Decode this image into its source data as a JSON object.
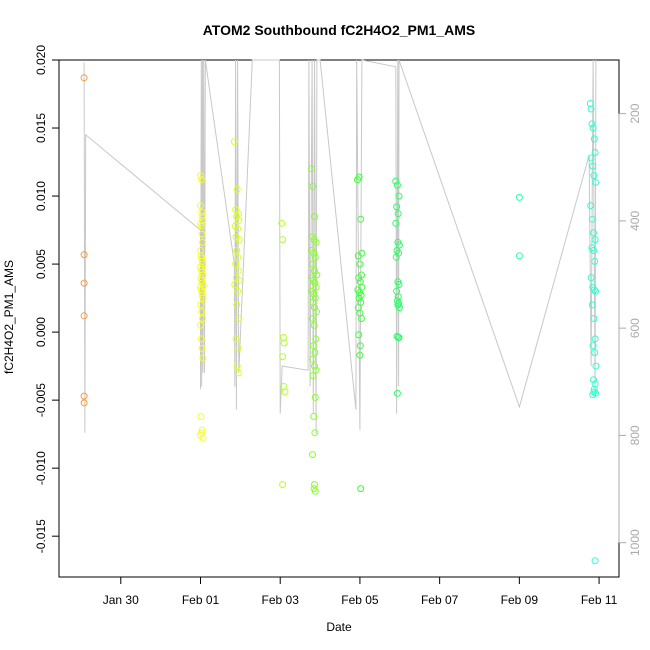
{
  "chart_data": {
    "type": "scatter",
    "title": "ATOM2 Southbound fC2H4O2_PM1_AMS",
    "xlabel": "Date",
    "ylabel": "fC2H4O2_PM1_AMS",
    "x_ticks": [
      "Jan 30",
      "Feb 01",
      "Feb 03",
      "Feb 05",
      "Feb 07",
      "Feb 09",
      "Feb 11"
    ],
    "x_tick_days": [
      30,
      32,
      34,
      36,
      38,
      40,
      42
    ],
    "xlim_days": [
      28.45,
      42.5
    ],
    "y_ticks": [
      "-0.015",
      "-0.010",
      "-0.005",
      "0.000",
      "0.005",
      "0.010",
      "0.015",
      "0.020"
    ],
    "y_tick_values": [
      -0.015,
      -0.01,
      -0.005,
      0.0,
      0.005,
      0.01,
      0.015,
      0.02
    ],
    "ylim": [
      -0.018,
      0.02
    ],
    "y2_ticks": [
      "200",
      "400",
      "600",
      "800",
      "1000"
    ],
    "y2_tick_values": [
      200,
      400,
      600,
      800,
      1000
    ],
    "y2lim": [
      1064,
      100
    ],
    "grid": false,
    "line_color": "#c8c8c8",
    "point_groups": [
      {
        "color": "#ff9a40",
        "x": [
          29.08,
          29.08,
          29.08,
          29.08,
          29.08,
          29.08
        ],
        "y": [
          0.0187,
          0.0057,
          0.0036,
          0.0012,
          -0.0047,
          -0.0052
        ]
      },
      {
        "color": "#f7ff24",
        "x": [
          32.0,
          32.02,
          32.0,
          32.03,
          32.04,
          32.05,
          32.0,
          32.02,
          32.04,
          32.05,
          32.0,
          32.02,
          32.03,
          32.05,
          32.06,
          32.0,
          32.02,
          32.04,
          32.06,
          32.01,
          32.03,
          32.05,
          32.07,
          32.0,
          32.02,
          32.04,
          32.05,
          32.06,
          32.01,
          32.03,
          32.05,
          32.0,
          32.02,
          32.04,
          32.06,
          32.01,
          32.04,
          32.06,
          32.0,
          32.03
        ],
        "y": [
          0.0115,
          0.0112,
          0.0093,
          0.0088,
          0.0085,
          0.0082,
          0.008,
          0.0078,
          0.0072,
          0.0066,
          0.006,
          0.0056,
          0.0054,
          0.0052,
          0.005,
          0.0048,
          0.0046,
          0.0044,
          0.0042,
          0.004,
          0.0038,
          0.0036,
          0.0034,
          0.0033,
          0.0031,
          0.0029,
          0.0027,
          0.0025,
          0.002,
          0.0015,
          0.001,
          0.0005,
          -0.0005,
          -0.0012,
          -0.0019,
          -0.0062,
          -0.0072,
          -0.0078,
          -0.0076,
          -0.0074
        ]
      },
      {
        "color": "#dcff20",
        "x": [
          32.85,
          32.92,
          32.88,
          32.95,
          32.9,
          32.96,
          32.87,
          32.93,
          32.89,
          32.97,
          32.91,
          32.94,
          32.88,
          32.95,
          32.9,
          32.97,
          32.86,
          32.93,
          32.91,
          32.96,
          32.89,
          32.94,
          32.92,
          32.95
        ],
        "y": [
          0.014,
          0.0105,
          0.009,
          0.0087,
          0.0085,
          0.0082,
          0.0078,
          0.0076,
          0.007,
          0.0068,
          0.006,
          0.0055,
          0.005,
          0.0045,
          0.004,
          0.0038,
          0.0035,
          0.003,
          0.002,
          0.001,
          -0.0005,
          -0.0012,
          -0.0025,
          -0.003
        ]
      },
      {
        "color": "#b4ff2a",
        "x": [
          34.04,
          34.06,
          34.08,
          34.1,
          34.06,
          34.09,
          34.12,
          34.06
        ],
        "y": [
          0.008,
          0.0068,
          -0.0004,
          -0.0008,
          -0.0018,
          -0.004,
          -0.0044,
          -0.0112
        ]
      },
      {
        "color": "#8aff2e",
        "x": [
          34.78,
          34.82,
          34.86,
          34.8,
          34.85,
          34.9,
          34.79,
          34.84,
          34.88,
          34.81,
          34.86,
          34.92,
          34.8,
          34.83,
          34.87,
          34.9,
          34.79,
          34.84,
          34.88,
          34.82,
          34.86,
          34.91,
          34.8,
          34.85,
          34.89,
          34.83,
          34.87,
          34.81,
          34.86,
          34.9,
          34.82,
          34.88,
          34.84,
          34.87,
          34.81,
          34.86,
          34.85,
          34.88
        ],
        "y": [
          0.012,
          0.0107,
          0.0085,
          0.007,
          0.0068,
          0.0066,
          0.006,
          0.0058,
          0.0055,
          0.005,
          0.0045,
          0.0042,
          0.004,
          0.0038,
          0.0036,
          0.0033,
          0.003,
          0.0028,
          0.0025,
          0.0022,
          0.0018,
          0.0015,
          0.001,
          0.0005,
          -0.0005,
          -0.001,
          -0.0015,
          -0.002,
          -0.0025,
          -0.0028,
          -0.0032,
          -0.0048,
          -0.0062,
          -0.0074,
          -0.009,
          -0.0112,
          -0.0115,
          -0.0117
        ]
      },
      {
        "color": "#3dff3d",
        "x": [
          35.94,
          35.98,
          36.02,
          36.05,
          35.96,
          36.0,
          36.04,
          35.97,
          36.01,
          36.05,
          35.95,
          35.99,
          36.03,
          35.98,
          36.02,
          35.96,
          36.0,
          36.04,
          35.97,
          36.01,
          36.0,
          36.02
        ],
        "y": [
          0.0112,
          0.0114,
          0.0083,
          0.0058,
          0.0056,
          0.005,
          0.0042,
          0.004,
          0.0037,
          0.0033,
          0.0031,
          0.0029,
          0.0027,
          0.0025,
          0.0022,
          0.0018,
          0.0014,
          0.001,
          -0.0002,
          -0.001,
          -0.0017,
          -0.0115
        ]
      },
      {
        "color": "#2cff66",
        "x": [
          36.9,
          36.94,
          36.98,
          36.92,
          36.96,
          36.9,
          36.95,
          36.99,
          36.93,
          36.97,
          36.91,
          36.95,
          36.98,
          36.92,
          36.96,
          36.94,
          36.97,
          36.95,
          36.99,
          36.93,
          36.96,
          36.98,
          36.94
        ],
        "y": [
          0.0111,
          0.0108,
          0.01,
          0.0092,
          0.0087,
          0.008,
          0.0066,
          0.0064,
          0.006,
          0.0058,
          0.0055,
          0.0037,
          0.0035,
          0.003,
          0.0026,
          0.0023,
          0.0021,
          0.002,
          0.0018,
          -0.0003,
          -0.0004,
          -0.0004,
          -0.0045
        ]
      },
      {
        "color": "#30ffa8",
        "x": [
          40.0,
          40.0
        ],
        "y": [
          0.0099,
          0.0056
        ]
      },
      {
        "color": "#30ffd0",
        "x": [
          41.78,
          41.8,
          41.82,
          41.85,
          41.88,
          41.9,
          41.8,
          41.84,
          41.87,
          41.91,
          41.79,
          41.83,
          41.86,
          41.9,
          41.82,
          41.86,
          41.89,
          41.8,
          41.84,
          41.88,
          41.91,
          41.83,
          41.87,
          41.9,
          41.85,
          41.89,
          41.92,
          41.86,
          41.9,
          41.88,
          41.91,
          41.84,
          41.87,
          41.9
        ],
        "y": [
          0.0168,
          0.0164,
          0.0153,
          0.015,
          0.0142,
          0.0132,
          0.0128,
          0.0122,
          0.0115,
          0.011,
          0.0093,
          0.0083,
          0.0073,
          0.0068,
          0.0062,
          0.006,
          0.0052,
          0.004,
          0.0033,
          0.0031,
          0.003,
          0.002,
          0.001,
          -0.0005,
          -0.001,
          -0.0015,
          -0.0025,
          -0.0035,
          -0.0038,
          -0.0042,
          -0.0045,
          -0.0046,
          -0.0044,
          -0.0168
        ]
      }
    ],
    "line_path": [
      [
        29.08,
        0.0198
      ],
      [
        29.1,
        -0.0074
      ],
      [
        29.12,
        0.0145
      ],
      [
        32.0,
        0.0075
      ],
      [
        32.0,
        -0.0042
      ],
      [
        32.02,
        0.02
      ],
      [
        32.03,
        -0.004
      ],
      [
        32.05,
        0.02
      ],
      [
        32.06,
        -0.003
      ],
      [
        32.08,
        0.02
      ],
      [
        32.1,
        -0.003
      ],
      [
        32.12,
        0.02
      ],
      [
        32.85,
        0.005
      ],
      [
        32.86,
        -0.004
      ],
      [
        32.88,
        0.02
      ],
      [
        32.9,
        -0.0057
      ],
      [
        32.93,
        0.02
      ],
      [
        32.95,
        0.003
      ],
      [
        32.96,
        -0.003
      ],
      [
        33.3,
        0.02
      ],
      [
        33.98,
        0.02
      ],
      [
        34.0,
        -0.006
      ],
      [
        34.05,
        -0.0025
      ],
      [
        34.7,
        -0.0028
      ],
      [
        34.72,
        0.02
      ],
      [
        34.75,
        -0.004
      ],
      [
        34.8,
        0.02
      ],
      [
        34.83,
        -0.006
      ],
      [
        34.86,
        0.02
      ],
      [
        34.9,
        -0.0075
      ],
      [
        34.92,
        0.02
      ],
      [
        35.0,
        0.02
      ],
      [
        35.9,
        -0.0057
      ],
      [
        35.92,
        0.02
      ],
      [
        36.0,
        -0.0072
      ],
      [
        36.05,
        0.02
      ],
      [
        36.9,
        0.0195
      ],
      [
        36.92,
        -0.006
      ],
      [
        36.95,
        0.02
      ],
      [
        36.97,
        -0.004
      ],
      [
        36.98,
        0.02
      ],
      [
        40.0,
        -0.0055
      ],
      [
        41.75,
        0.013
      ],
      [
        41.8,
        -0.0025
      ],
      [
        41.85,
        0.02
      ],
      [
        41.9,
        -0.0045
      ],
      [
        41.92,
        0.02
      ]
    ]
  }
}
